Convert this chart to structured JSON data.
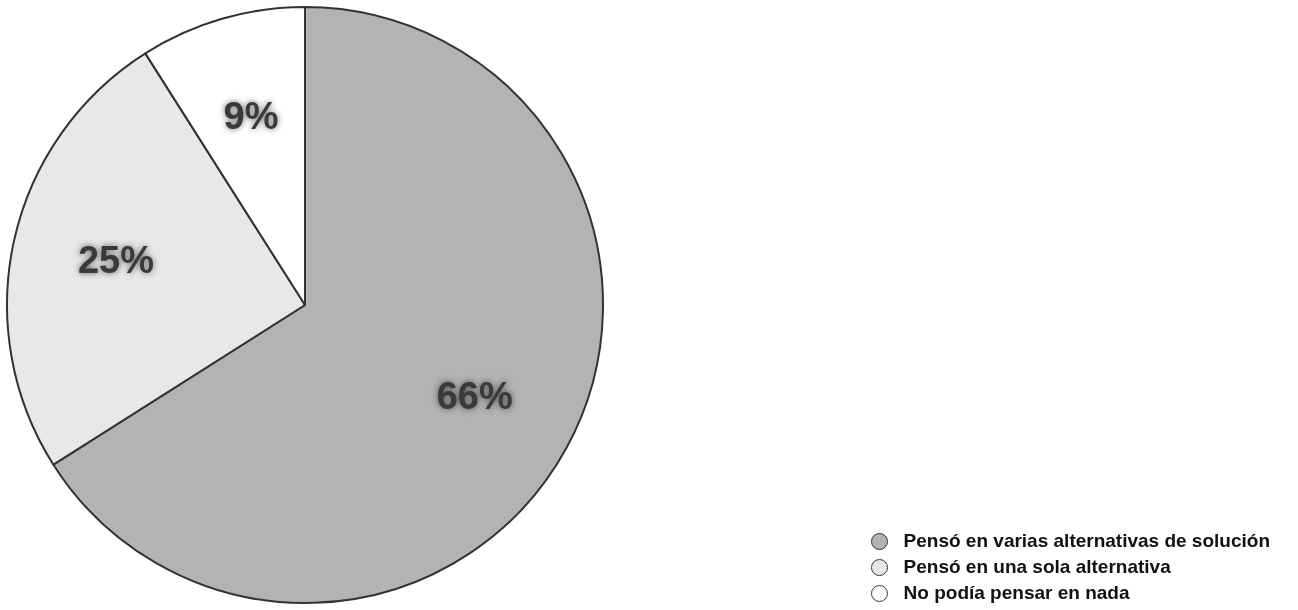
{
  "chart_data": {
    "type": "pie",
    "categories": [
      "Pensó en varias alternativas de solución",
      "Pensó en una sola alternativa",
      "No podía pensar en nada"
    ],
    "values": [
      66,
      25,
      9
    ],
    "colors": [
      "#b3b3b3",
      "#e8e8e8",
      "#ffffff"
    ],
    "value_labels": [
      "66%",
      "25%",
      "9%"
    ],
    "legend": "bottom right"
  }
}
